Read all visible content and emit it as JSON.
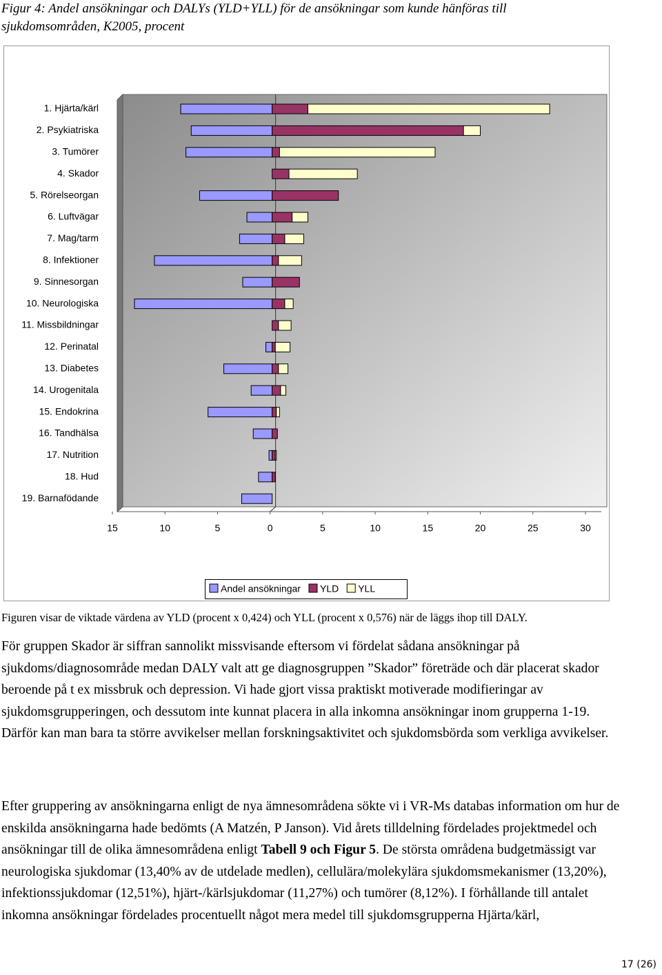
{
  "chart_data": {
    "type": "bar",
    "orientation": "horizontal",
    "title": "Figur 4: Andel ansökningar och DALYs (YLD+YLL) för de ansökningar som kunde hänföras till sjukdomsområden, K2005, procent",
    "categories": [
      "1. Hjärta/kärl",
      "2. Psykiatriska",
      "3. Tumörer",
      "4. Skador",
      "5. Rörelseorgan",
      "6. Luftvägar",
      "7. Mag/tarm",
      "8. Infektioner",
      "9. Sinnesorgan",
      "10. Neurologiska",
      "11. Missbildningar",
      "12. Perinatal",
      "13. Diabetes",
      "14. Urogenitala",
      "15. Endokrina",
      "16. Tandhälsa",
      "17. Nutrition",
      "18. Hud",
      "19. Barnafödande"
    ],
    "series": [
      {
        "name": "Andel ansökningar",
        "color": "#9999ff",
        "values": [
          -8.7,
          -7.7,
          -8.2,
          0,
          -6.9,
          -2.4,
          -3.1,
          -11.2,
          -2.8,
          -13.1,
          0,
          -0.6,
          -4.6,
          -2.0,
          -6.1,
          -1.8,
          -0.3,
          -1.3,
          -2.9
        ]
      },
      {
        "name": "YLD",
        "color": "#993366",
        "values": [
          3.4,
          18.2,
          0.7,
          1.6,
          6.3,
          1.9,
          1.2,
          0.6,
          2.6,
          1.2,
          0.6,
          0.3,
          0.6,
          0.8,
          0.4,
          0.5,
          0.3,
          0.3,
          0
        ]
      },
      {
        "name": "YLL",
        "color": "#ffffcc",
        "values": [
          23.0,
          1.6,
          14.8,
          6.5,
          0,
          1.5,
          1.8,
          2.2,
          0,
          0.8,
          1.2,
          1.4,
          0.9,
          0.5,
          0.3,
          0,
          0.1,
          0,
          0
        ]
      }
    ],
    "xlim": [
      -15,
      30
    ],
    "xticks": [
      {
        "value": -15,
        "label": "15"
      },
      {
        "value": -10,
        "label": "10"
      },
      {
        "value": -5,
        "label": "5"
      },
      0,
      5,
      10,
      15,
      20,
      25,
      30
    ]
  },
  "caption": "Figuren visar de viktade värdena av YLD (procent x 0,424) och YLL (procent x 0,576) när de läggs ihop till DALY.",
  "paragraphs": [
    [
      {
        "text": "För gruppen Skador är siffran sannolikt missvisande eftersom vi fördelat sådana ansökningar på sjukdoms/diagnosområde medan DALY valt att ge diagnosgruppen ”Skador” företräde och där placerat skador beroende på t ex missbruk och depression. Vi hade gjort vissa praktiskt motiverade modifieringar av sjukdomsgrupperingen, och dessutom inte kunnat placera in alla inkomna ansökningar inom grupperna 1-19. Därför kan man bara ta större avvikelser mellan forskningsaktivitet och sjukdomsbörda som verkliga avvikelser.",
        "bold": false
      }
    ],
    [
      {
        "text": "Efter gruppering av ansökningarna enligt de nya ämnesområdena sökte vi i VR-Ms databas information om hur de enskilda ansökningarna hade bedömts (A Matzén, P Janson). Vid årets tilldelning fördelades projektmedel och ansökningar till de olika ämnesområdena enligt ",
        "bold": false
      },
      {
        "text": "Tabell 9 och Figur 5",
        "bold": true
      },
      {
        "text": ". De största områdena budgetmässigt var neurologiska sjukdomar (13,40% av de utdelade medlen), cellulära/molekylära sjukdomsmekanismer (13,20%), infektionssjukdomar (12,51%), hjärt-/kärlsjukdomar (11,27%) och tumörer (8,12%). I förhållande till antalet inkomna ansökningar fördelades procentuellt något mera medel till sjukdomsgrupperna Hjärta/kärl,",
        "bold": false
      }
    ]
  ],
  "page_number": "17 (26)"
}
